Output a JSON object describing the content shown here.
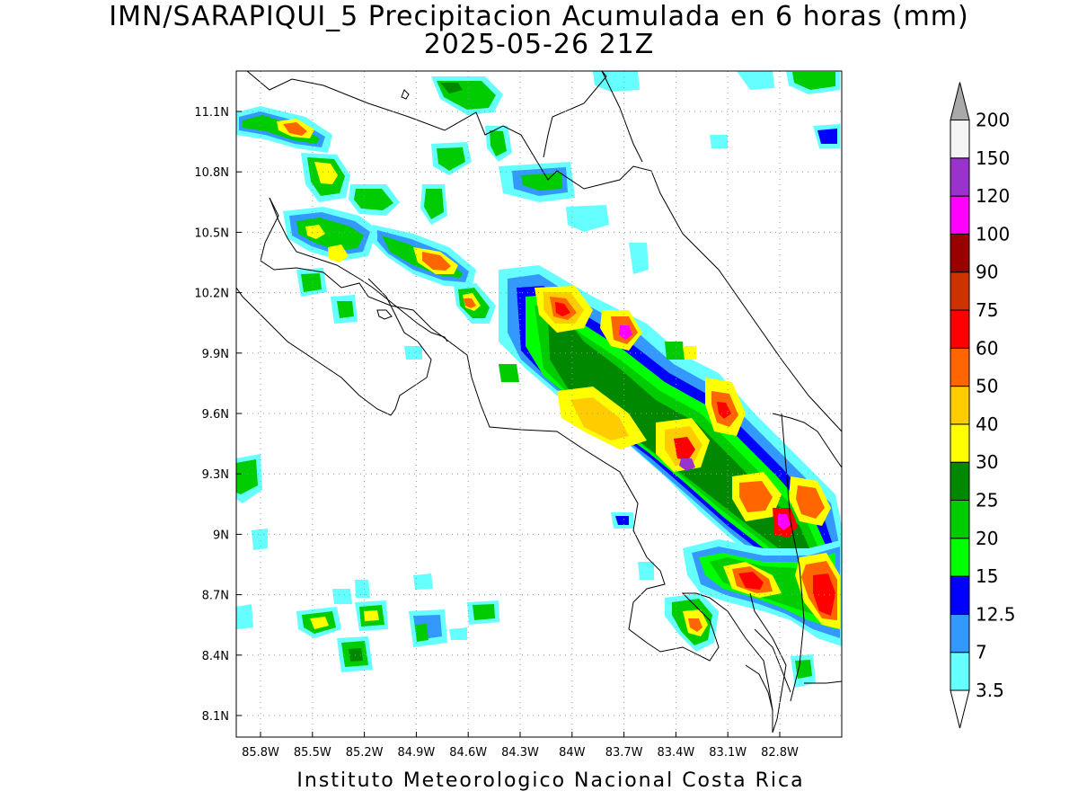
{
  "title": {
    "line1": "IMN/SARAPIQUI_5 Precipitacion Acumulada en 6 horas (mm)",
    "line2": "2025-05-26 21Z"
  },
  "footer": "Instituto Meteorologico Nacional Costa Rica",
  "map": {
    "projection": "lat-lon",
    "lon_range": [
      -86.0,
      -83.0
    ],
    "lat_range": [
      8.0,
      11.3
    ],
    "grid": "dotted",
    "x_ticks": [
      "85.8W",
      "85.5W",
      "85.2W",
      "84.9W",
      "84.6W",
      "84.3W",
      "84W",
      "83.7W",
      "83.4W",
      "83.1W",
      "82.8W"
    ],
    "y_ticks": [
      "11.1N",
      "10.8N",
      "10.5N",
      "10.2N",
      "9.9N",
      "9.6N",
      "9.3N",
      "9N",
      "8.7N",
      "8.4N",
      "8.1N"
    ]
  },
  "colorbar": {
    "units": "mm",
    "levels": [
      "3.5",
      "7",
      "12.5",
      "15",
      "20",
      "25",
      "30",
      "40",
      "50",
      "60",
      "75",
      "90",
      "100",
      "120",
      "150",
      "200"
    ],
    "colors": [
      "#66ffff",
      "#3399ff",
      "#0000ff",
      "#00ff00",
      "#00cc00",
      "#008800",
      "#ffff00",
      "#ffcc00",
      "#ff6600",
      "#ff0000",
      "#cc3300",
      "#990000",
      "#ff00ff",
      "#9933cc",
      "#f5f5f5",
      "#a9a9a9"
    ]
  }
}
